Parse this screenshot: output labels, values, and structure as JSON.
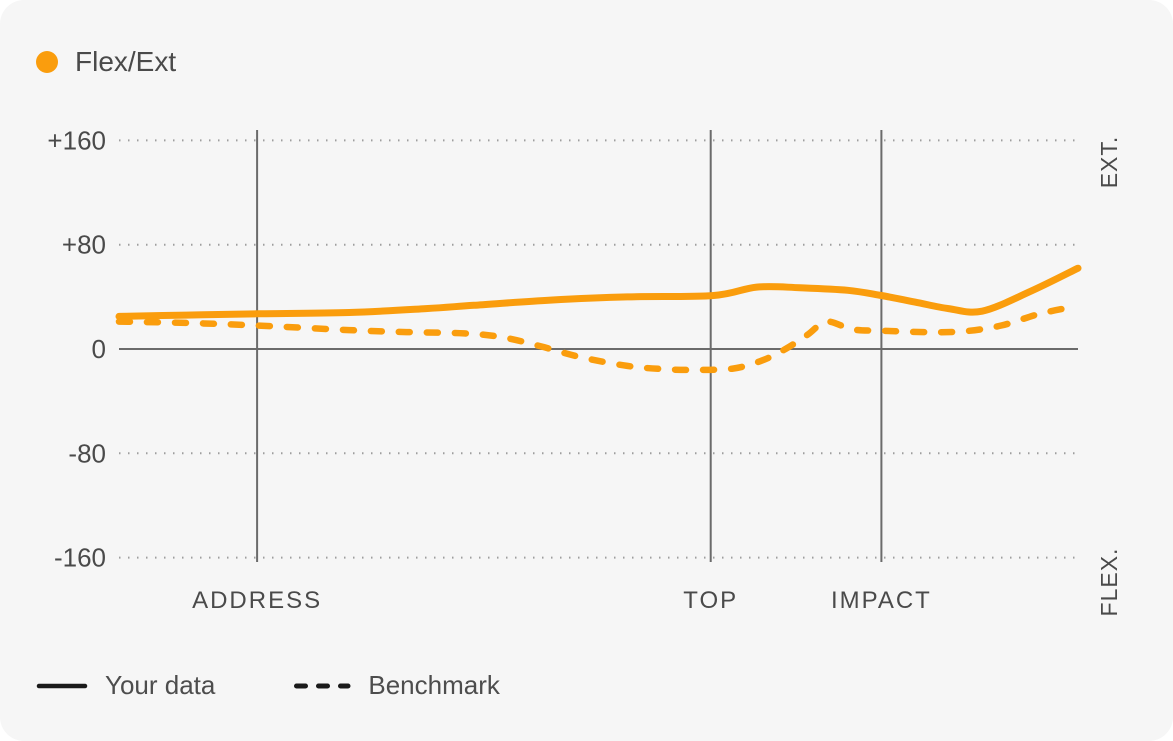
{
  "card": {
    "title": "Flex/Ext"
  },
  "legend": {
    "items": [
      {
        "label": "Your data",
        "style": "solid"
      },
      {
        "label": "Benchmark",
        "style": "dashed"
      }
    ]
  },
  "colors": {
    "accent_orange": "#fa9d0d",
    "axis_gray": "#6b6b6b",
    "grid_dot_gray": "#9e9e9e",
    "text_gray": "#4a4a4a",
    "legend_swatch_black": "#1a1a1a",
    "card_background": "#f6f6f6"
  },
  "chart_data": {
    "type": "line",
    "title": "Flex/Ext",
    "ylim": [
      -160,
      160
    ],
    "grid": "dotted horizontal lines at ticks, solid zero axis, vertical event lines",
    "legend_position": "bottom-left",
    "y_ticks": [
      {
        "value": 160,
        "label": "+160"
      },
      {
        "value": 80,
        "label": "+80"
      },
      {
        "value": 0,
        "label": "0"
      },
      {
        "value": -80,
        "label": "-80"
      },
      {
        "value": -160,
        "label": "-160"
      }
    ],
    "right_axis_labels": {
      "top": "EXT.",
      "bottom": "FLEX."
    },
    "events": [
      {
        "label": "ADDRESS",
        "x_pct": 14.4
      },
      {
        "label": "TOP",
        "x_pct": 61.7
      },
      {
        "label": "IMPACT",
        "x_pct": 79.5
      }
    ],
    "series": [
      {
        "name": "Your data",
        "style": "solid",
        "color": "#fa9d0d",
        "points": [
          [
            0,
            25
          ],
          [
            7,
            26
          ],
          [
            14.4,
            27
          ],
          [
            24,
            28
          ],
          [
            32,
            31
          ],
          [
            37,
            33.5
          ],
          [
            45,
            37.5
          ],
          [
            53,
            40
          ],
          [
            62,
            41
          ],
          [
            66.5,
            47.5
          ],
          [
            71,
            47
          ],
          [
            76,
            45
          ],
          [
            79.5,
            41
          ],
          [
            83,
            36
          ],
          [
            86.5,
            31
          ],
          [
            90,
            29
          ],
          [
            95,
            44
          ],
          [
            100,
            62
          ]
        ]
      },
      {
        "name": "Benchmark",
        "style": "dashed",
        "color": "#fa9d0d",
        "points": [
          [
            0,
            21
          ],
          [
            7,
            20
          ],
          [
            14.4,
            18
          ],
          [
            24,
            14.5
          ],
          [
            30,
            13
          ],
          [
            36,
            12
          ],
          [
            40,
            9
          ],
          [
            44,
            2
          ],
          [
            48,
            -6
          ],
          [
            53,
            -13
          ],
          [
            57,
            -15.5
          ],
          [
            60,
            -16
          ],
          [
            64,
            -15
          ],
          [
            67,
            -9
          ],
          [
            69.5,
            0
          ],
          [
            71.8,
            11
          ],
          [
            73.8,
            21
          ],
          [
            76.5,
            15
          ],
          [
            79.5,
            14
          ],
          [
            84,
            13
          ],
          [
            88,
            13.5
          ],
          [
            92,
            18
          ],
          [
            96,
            27
          ],
          [
            100,
            33
          ]
        ]
      }
    ]
  }
}
